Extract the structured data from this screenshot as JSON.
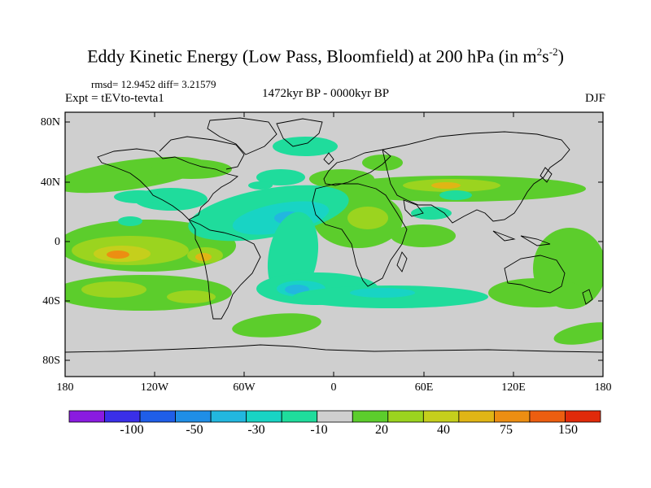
{
  "title": {
    "main": "Eddy Kinetic Energy (Low Pass, Bloomfield) at 200 hPa (in m",
    "sup1": "2",
    "mid": "s",
    "sup2": "-2",
    "end": ")"
  },
  "stats": "rmsd= 12.9452 diff= 3.21579",
  "experiment": "Expt = tEVto-tevta1",
  "period": "1472kyr BP - 0000kyr BP",
  "season": "DJF",
  "axes": {
    "y_ticks": [
      "80N",
      "40N",
      "0",
      "40S",
      "80S"
    ],
    "x_ticks": [
      "180",
      "120W",
      "60W",
      "0",
      "60E",
      "120E",
      "180"
    ]
  },
  "colorbar": {
    "labels": [
      "-100",
      "-50",
      "-30",
      "-10",
      "20",
      "40",
      "75",
      "150"
    ],
    "colors": [
      "#8a1be0",
      "#3a2fe8",
      "#1f5ee8",
      "#1f8ee6",
      "#22b7df",
      "#18d4c4",
      "#1fdc9c",
      "#cfcfcf",
      "#5ccd2c",
      "#9bd41f",
      "#c5cf1c",
      "#e0b515",
      "#ec8e12",
      "#ec5e10",
      "#e02a0a"
    ]
  },
  "map_colors": {
    "background": "#cfcfcf",
    "neg_light": "#1fdc9c",
    "neg_mid": "#18d4c4",
    "neg_strong": "#22b7df",
    "neg_core": "#1f8ee6",
    "pos_light": "#5ccd2c",
    "pos_mid": "#9bd41f",
    "pos_strong": "#c5cf1c",
    "pos_core": "#e0b515",
    "pos_max": "#ec8e12"
  }
}
